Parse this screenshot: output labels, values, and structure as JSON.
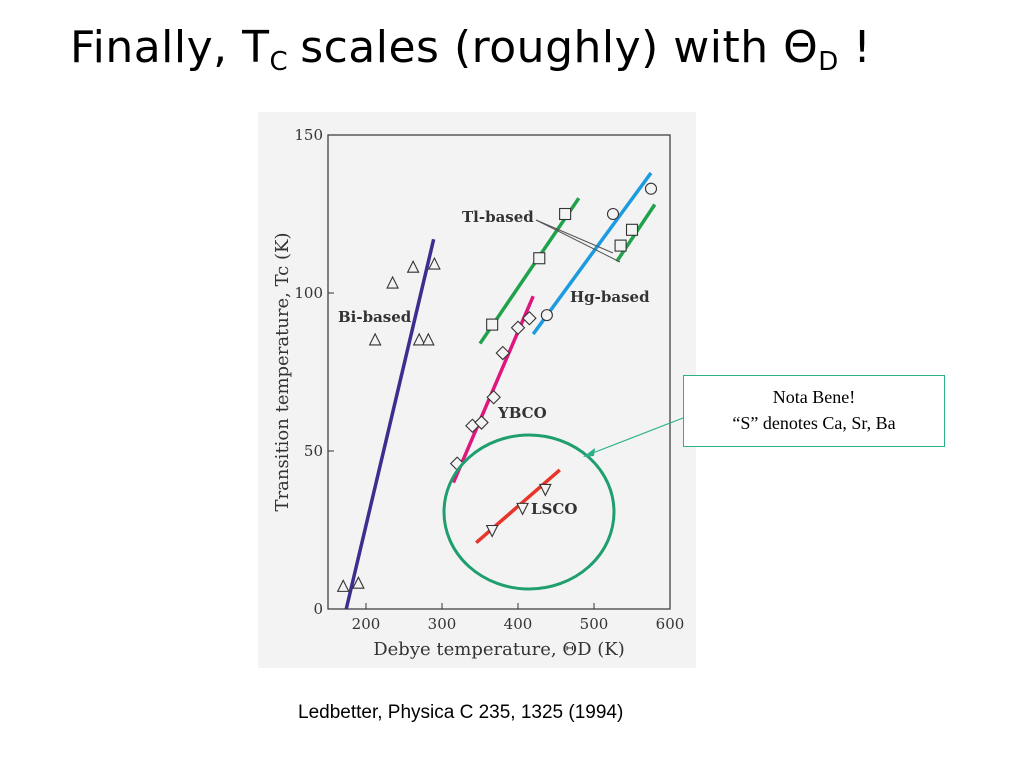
{
  "slide": {
    "title_prefix": "Finally, T",
    "title_sub": "C",
    "title_middle": "scales (roughly) with Θ",
    "title_sub2": "D",
    "title_suffix": " !"
  },
  "note": {
    "line1": "Nota Bene!",
    "line2": "“S” denotes Ca, Sr, Ba"
  },
  "citation": "Ledbetter, Physica C 235, 1325 (1994)",
  "colors": {
    "bi": "#3a2f8f",
    "tl": "#1fa24a",
    "hg": "#1c9be0",
    "ybco": "#e0167f",
    "lsco": "#e8352a",
    "circle": "#1f9e6e",
    "arrow": "#2bb08a"
  },
  "chart_data": {
    "type": "scatter",
    "xlabel": "Debye temperature, ΘD (K)",
    "ylabel": "Transition temperature, Tc (K)",
    "xlim": [
      150,
      600
    ],
    "ylim": [
      0,
      150
    ],
    "x_ticks": [
      "200",
      "300",
      "400",
      "500",
      "600"
    ],
    "y_ticks": [
      "0",
      "50",
      "100",
      "150"
    ],
    "series": [
      {
        "name": "Bi-based",
        "marker": "triangle-up",
        "points": [
          [
            170,
            7
          ],
          [
            190,
            8
          ],
          [
            212,
            85
          ],
          [
            235,
            103
          ],
          [
            262,
            108
          ],
          [
            270,
            85
          ],
          [
            282,
            85
          ],
          [
            290,
            109
          ]
        ],
        "fit": [
          [
            174,
            0
          ],
          [
            289,
            117
          ]
        ]
      },
      {
        "name": "Tl-based",
        "marker": "square",
        "points": [
          [
            366,
            90
          ],
          [
            428,
            111
          ],
          [
            462,
            125
          ],
          [
            535,
            115
          ],
          [
            550,
            120
          ]
        ],
        "fit": [
          [
            350,
            84
          ],
          [
            480,
            130
          ]
        ],
        "fit2": [
          [
            530,
            110
          ],
          [
            580,
            128
          ]
        ]
      },
      {
        "name": "Hg-based",
        "marker": "circle",
        "points": [
          [
            438,
            93
          ],
          [
            525,
            125
          ],
          [
            575,
            133
          ]
        ],
        "fit": [
          [
            420,
            87
          ],
          [
            575,
            138
          ]
        ]
      },
      {
        "name": "YBCO",
        "marker": "diamond",
        "points": [
          [
            320,
            46
          ],
          [
            340,
            58
          ],
          [
            352,
            59
          ],
          [
            368,
            67
          ],
          [
            380,
            81
          ],
          [
            400,
            89
          ],
          [
            415,
            92
          ]
        ],
        "fit": [
          [
            315,
            40
          ],
          [
            420,
            99
          ]
        ]
      },
      {
        "name": "LSCO",
        "marker": "triangle-down",
        "points": [
          [
            366,
            25
          ],
          [
            406,
            32
          ],
          [
            436,
            38
          ]
        ],
        "fit": [
          [
            345,
            21
          ],
          [
            455,
            44
          ]
        ]
      }
    ]
  }
}
